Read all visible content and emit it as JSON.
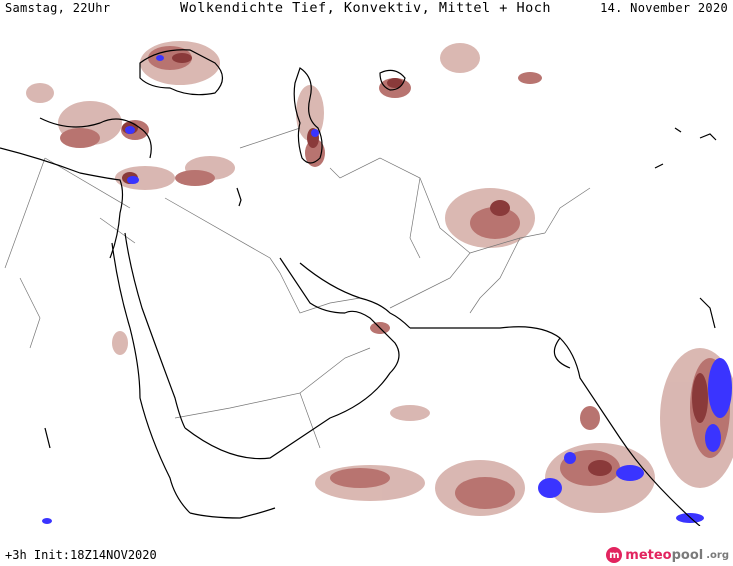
{
  "header": {
    "left": "Samstag, 22Uhr",
    "title": "Wolkendichte  Tief, Konvektiv, Mittel + Hoch",
    "right": "14. November 2020"
  },
  "footer": {
    "left": "+3h  Init:18Z14NOV2020",
    "logo_letter": "m",
    "logo_brand_a": "meteo",
    "logo_brand_b": "pool",
    "logo_tld": ".org"
  },
  "colors": {
    "cloud_low": "#d8b4ae",
    "cloud_mid": "#b87470",
    "cloud_high": "#8a3a3a",
    "convective": "#3a34ff",
    "coast": "#000000",
    "border": "#777777"
  }
}
